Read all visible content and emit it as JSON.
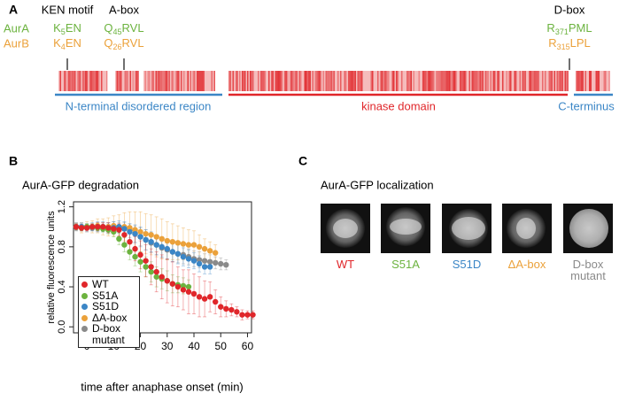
{
  "panel_a": {
    "letter": "A",
    "features": [
      "KEN motif",
      "A-box",
      "D-box"
    ],
    "species": [
      {
        "name": "AurA",
        "color": "#6cb33f",
        "motifs": [
          [
            "K",
            "5",
            "EN"
          ],
          [
            "Q",
            "45",
            "RVL"
          ],
          [
            "R",
            "371",
            "PML"
          ]
        ]
      },
      {
        "name": "AurB",
        "color": "#eba13a",
        "motifs": [
          [
            "K",
            "4",
            "EN"
          ],
          [
            "Q",
            "26",
            "RVL"
          ],
          [
            "R",
            "315",
            "LPL"
          ]
        ]
      }
    ],
    "regions": [
      {
        "label": "N-terminal disordered region",
        "color": "#3b86c6"
      },
      {
        "label": "kinase domain",
        "color": "#e0262a"
      },
      {
        "label": "C-terminus",
        "color": "#3b86c6"
      }
    ]
  },
  "chart_data": {
    "type": "scatter",
    "letter": "B",
    "title": "AurA-GFP degradation",
    "x_label": "time after anaphase onset (min)",
    "y_label": "relative fluorescence units",
    "xlim": [
      -5,
      61.5
    ],
    "ylim": [
      -0.06,
      1.25
    ],
    "xticks": [
      0,
      10,
      20,
      30,
      40,
      50,
      60
    ],
    "yticks": [
      {
        "value": 0,
        "label": "0.0"
      },
      0.4,
      0.8,
      1.2
    ],
    "legend": "bottom-left",
    "series": [
      {
        "name": "WT",
        "color": "#e0262a",
        "x": [
          -4,
          -2,
          0,
          2,
          4,
          6,
          8,
          10,
          12,
          14,
          16,
          18,
          20,
          22,
          24,
          26,
          28,
          30,
          32,
          34,
          36,
          38,
          40,
          42,
          44,
          46,
          48,
          50,
          52,
          54,
          56,
          58,
          60,
          62
        ],
        "values": [
          1.0,
          0.99,
          0.99,
          1.0,
          1.0,
          1.0,
          0.99,
          0.98,
          0.97,
          0.92,
          0.85,
          0.78,
          0.72,
          0.66,
          0.6,
          0.55,
          0.5,
          0.46,
          0.43,
          0.4,
          0.37,
          0.35,
          0.33,
          0.3,
          0.28,
          0.3,
          0.25,
          0.2,
          0.18,
          0.17,
          0.15,
          0.12,
          0.12,
          0.12
        ],
        "errors": [
          0.03,
          0.03,
          0.03,
          0.03,
          0.04,
          0.04,
          0.05,
          0.05,
          0.06,
          0.08,
          0.1,
          0.12,
          0.14,
          0.16,
          0.18,
          0.2,
          0.22,
          0.22,
          0.22,
          0.2,
          0.2,
          0.22,
          0.2,
          0.2,
          0.18,
          0.15,
          0.12,
          0.1,
          0.08,
          0.06,
          0.05,
          0.05,
          0.04,
          0.04
        ]
      },
      {
        "name": "S51A",
        "color": "#6cb33f",
        "x": [
          -4,
          -2,
          0,
          2,
          4,
          6,
          8,
          10,
          12,
          14,
          16,
          18,
          20,
          22,
          24,
          26,
          28,
          30,
          32,
          34,
          36,
          38
        ],
        "values": [
          1.0,
          0.99,
          1.0,
          1.0,
          0.99,
          0.98,
          0.97,
          0.95,
          0.88,
          0.82,
          0.75,
          0.7,
          0.65,
          0.6,
          0.55,
          0.5,
          0.48,
          0.46,
          0.43,
          0.42,
          0.41,
          0.4
        ],
        "errors": [
          0.03,
          0.03,
          0.03,
          0.03,
          0.03,
          0.03,
          0.04,
          0.05,
          0.06,
          0.07,
          0.08,
          0.09,
          0.1,
          0.1,
          0.1,
          0.1,
          0.1,
          0.1,
          0.09,
          0.08,
          0.08,
          0.07
        ]
      },
      {
        "name": "S51D",
        "color": "#3b86c6",
        "x": [
          -4,
          -2,
          0,
          2,
          4,
          6,
          8,
          10,
          12,
          14,
          16,
          18,
          20,
          22,
          24,
          26,
          28,
          30,
          32,
          34,
          36,
          38,
          40,
          42,
          44,
          46
        ],
        "values": [
          1.0,
          1.0,
          0.99,
          1.0,
          1.0,
          1.0,
          0.99,
          0.99,
          1.0,
          0.98,
          0.95,
          0.93,
          0.9,
          0.87,
          0.85,
          0.82,
          0.8,
          0.78,
          0.75,
          0.73,
          0.7,
          0.68,
          0.66,
          0.63,
          0.6,
          0.6
        ],
        "errors": [
          0.04,
          0.04,
          0.04,
          0.04,
          0.05,
          0.05,
          0.05,
          0.06,
          0.06,
          0.07,
          0.08,
          0.09,
          0.1,
          0.1,
          0.1,
          0.1,
          0.1,
          0.1,
          0.1,
          0.1,
          0.09,
          0.09,
          0.08,
          0.08,
          0.07,
          0.07
        ]
      },
      {
        "name": "ΔA-box",
        "color": "#eba13a",
        "x": [
          -4,
          -2,
          0,
          2,
          4,
          6,
          8,
          10,
          12,
          14,
          16,
          18,
          20,
          22,
          24,
          26,
          28,
          30,
          32,
          34,
          36,
          38,
          40,
          42,
          44,
          46,
          48
        ],
        "values": [
          1.0,
          0.99,
          1.0,
          1.0,
          1.01,
          1.0,
          1.0,
          1.01,
          1.0,
          1.0,
          0.99,
          0.97,
          0.95,
          0.93,
          0.92,
          0.9,
          0.88,
          0.86,
          0.85,
          0.84,
          0.83,
          0.82,
          0.82,
          0.8,
          0.78,
          0.76,
          0.74
        ],
        "errors": [
          0.04,
          0.05,
          0.05,
          0.06,
          0.07,
          0.08,
          0.09,
          0.1,
          0.12,
          0.14,
          0.16,
          0.18,
          0.2,
          0.2,
          0.2,
          0.2,
          0.2,
          0.19,
          0.18,
          0.17,
          0.16,
          0.15,
          0.14,
          0.12,
          0.1,
          0.09,
          0.08
        ]
      },
      {
        "name": "D-box mutant",
        "color": "#8a8a8a",
        "x": [
          -4,
          -2,
          0,
          2,
          4,
          6,
          8,
          10,
          12,
          14,
          16,
          18,
          20,
          22,
          24,
          26,
          28,
          30,
          32,
          34,
          36,
          38,
          40,
          42,
          44,
          46,
          48,
          50,
          52
        ],
        "values": [
          1.0,
          1.0,
          1.0,
          0.99,
          1.0,
          1.0,
          1.0,
          1.0,
          0.99,
          0.98,
          0.96,
          0.93,
          0.9,
          0.87,
          0.84,
          0.82,
          0.79,
          0.77,
          0.75,
          0.73,
          0.72,
          0.7,
          0.68,
          0.67,
          0.66,
          0.65,
          0.64,
          0.63,
          0.62
        ],
        "errors": [
          0.03,
          0.03,
          0.03,
          0.03,
          0.04,
          0.04,
          0.04,
          0.05,
          0.05,
          0.06,
          0.07,
          0.08,
          0.09,
          0.1,
          0.1,
          0.1,
          0.1,
          0.1,
          0.1,
          0.09,
          0.09,
          0.08,
          0.08,
          0.08,
          0.07,
          0.07,
          0.06,
          0.06,
          0.05
        ]
      }
    ]
  },
  "panel_c": {
    "letter": "C",
    "title": "AurA-GFP localization",
    "samples": [
      {
        "label": "WT",
        "color": "#e0262a"
      },
      {
        "label": "S51A",
        "color": "#6cb33f"
      },
      {
        "label": "S51D",
        "color": "#3b86c6"
      },
      {
        "label": "ΔA-box",
        "color": "#eba13a"
      },
      {
        "label": "D-box mutant",
        "color": "#8a8a8a"
      }
    ]
  }
}
